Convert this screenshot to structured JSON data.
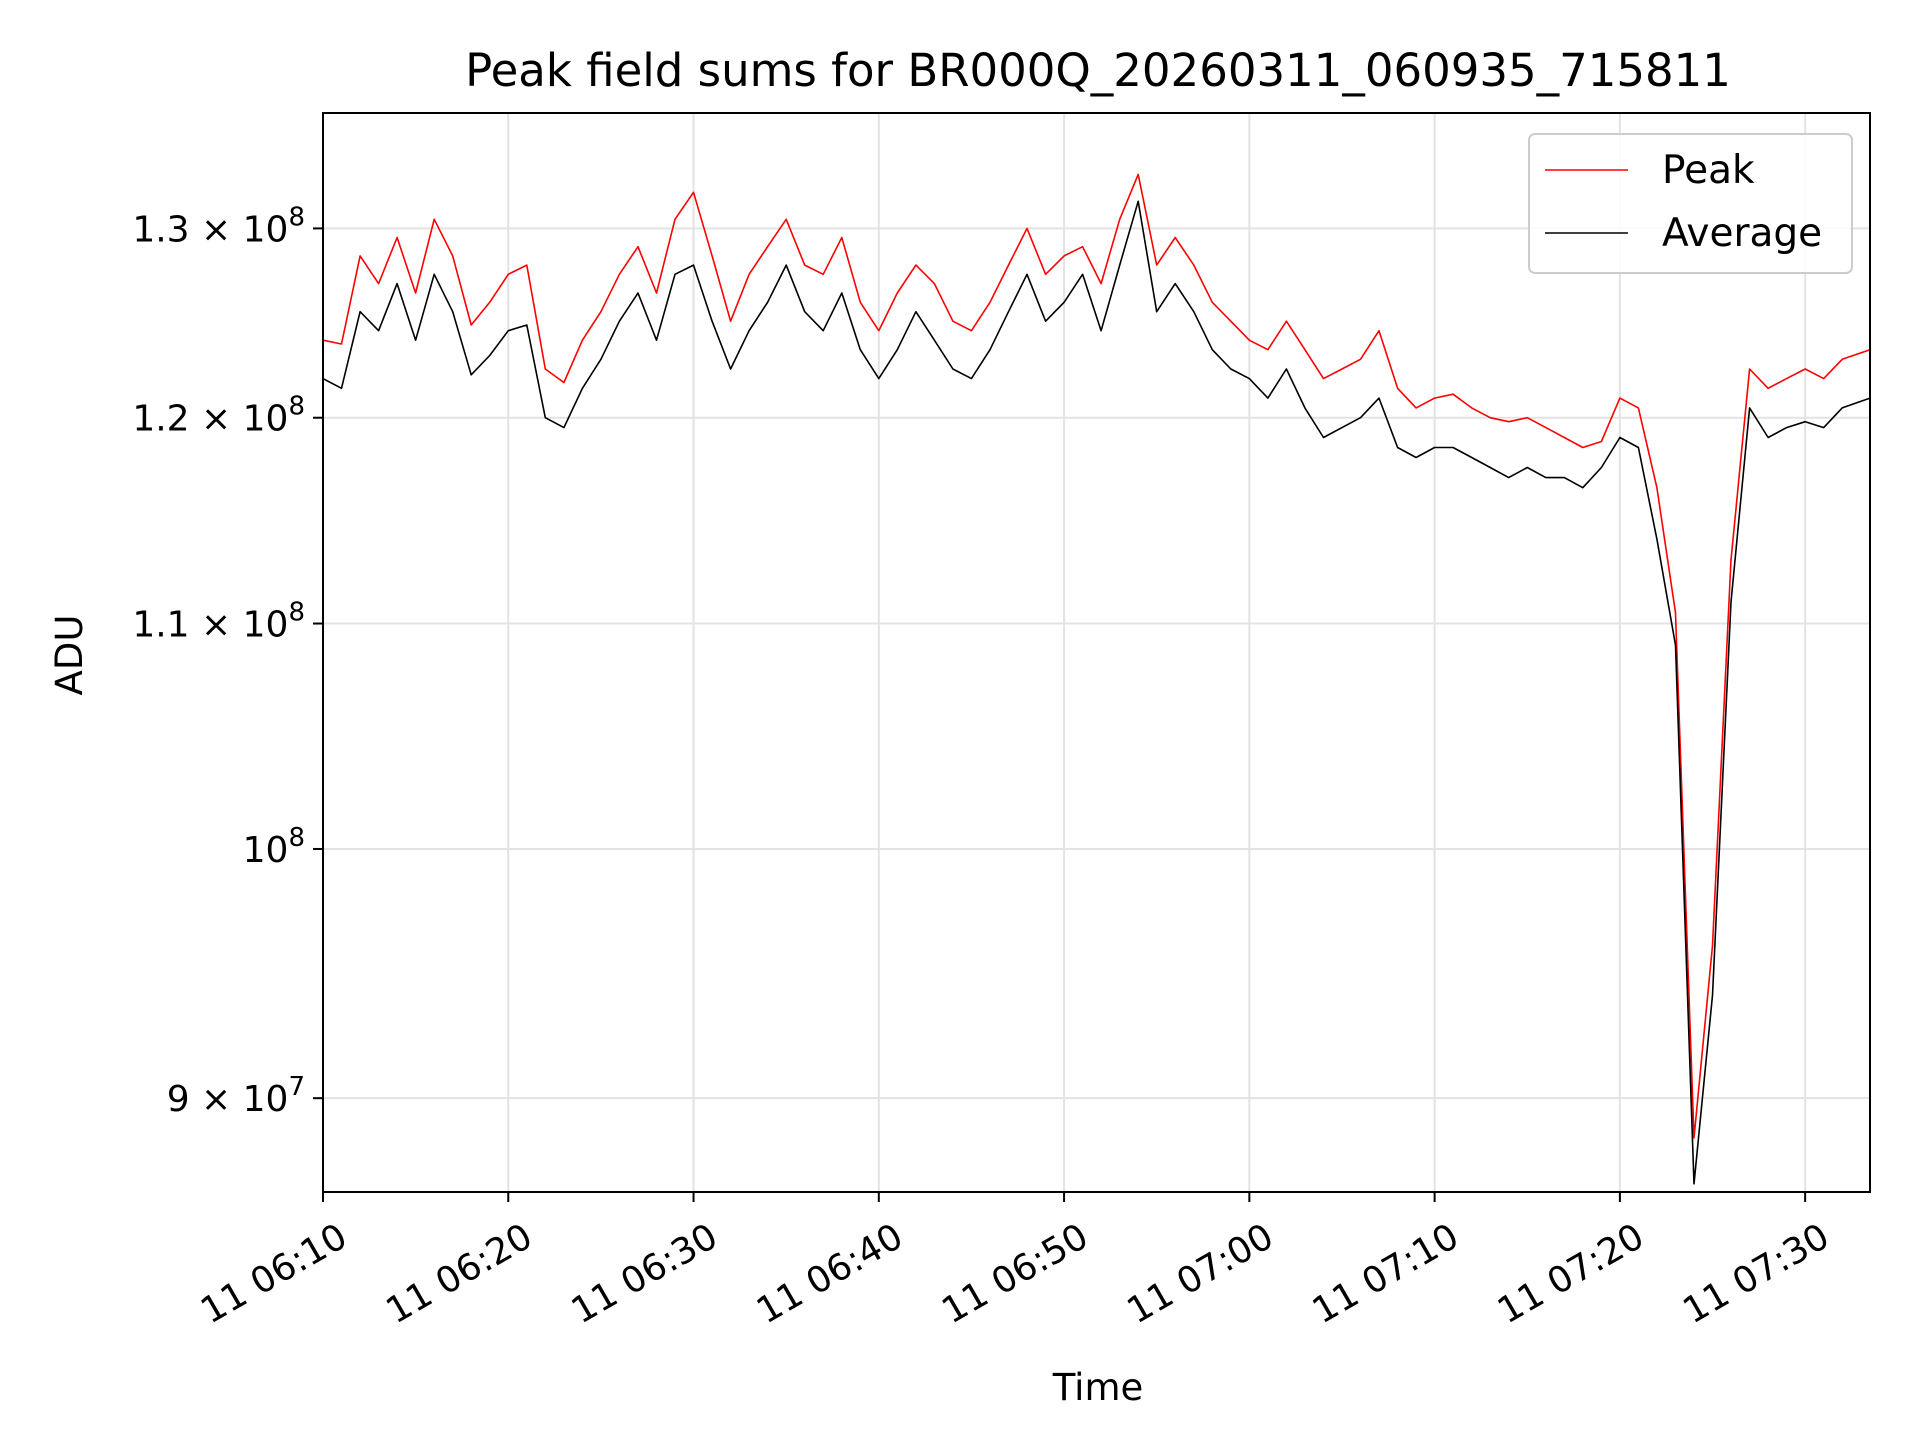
{
  "chart_data": {
    "type": "line",
    "title": "Peak field sums for BR000Q_20260311_060935_715811",
    "xlabel": "Time",
    "ylabel": "ADU",
    "yscale": "log",
    "grid": true,
    "legend_position": "top-right",
    "xlim": [
      0,
      83.5
    ],
    "ylim": [
      86500000,
      136500000
    ],
    "x_unit": "minutes since 11 06:10",
    "x_ticks": [
      0,
      10,
      20,
      30,
      40,
      50,
      60,
      70,
      80
    ],
    "x_tick_labels": [
      "11 06:10",
      "11 06:20",
      "11 06:30",
      "11 06:40",
      "11 06:50",
      "11 07:00",
      "11 07:10",
      "11 07:20",
      "11 07:30"
    ],
    "y_ticks": [
      {
        "value": 90000000,
        "mantissa": "9",
        "exponent": "7"
      },
      {
        "value": 100000000,
        "mantissa": "",
        "exponent": "8"
      },
      {
        "value": 110000000,
        "mantissa": "1.1",
        "exponent": "8"
      },
      {
        "value": 120000000,
        "mantissa": "1.2",
        "exponent": "8"
      },
      {
        "value": 130000000,
        "mantissa": "1.3",
        "exponent": "8"
      }
    ],
    "series": [
      {
        "name": "Peak",
        "color": "#ff0000",
        "x": [
          0,
          1,
          2,
          3,
          4,
          5,
          6,
          7,
          8,
          9,
          10,
          11,
          12,
          13,
          14,
          15,
          16,
          17,
          18,
          19,
          20,
          21,
          22,
          23,
          24,
          25,
          26,
          27,
          28,
          29,
          30,
          31,
          32,
          33,
          34,
          35,
          36,
          37,
          38,
          39,
          40,
          41,
          42,
          43,
          44,
          45,
          46,
          47,
          48,
          49,
          50,
          51,
          52,
          53,
          54,
          55,
          56,
          57,
          58,
          59,
          60,
          61,
          62,
          63,
          64,
          65,
          66,
          67,
          68,
          69,
          70,
          71,
          72,
          73,
          74,
          75,
          76,
          77,
          78,
          79,
          80,
          81,
          82,
          83.5
        ],
        "values": [
          124.0,
          123.8,
          128.5,
          127.0,
          129.5,
          126.5,
          130.5,
          128.5,
          124.8,
          126.0,
          127.5,
          128.0,
          122.5,
          121.8,
          124.0,
          125.5,
          127.5,
          129.0,
          126.5,
          130.5,
          132.0,
          128.5,
          125.0,
          127.5,
          129.0,
          130.5,
          128.0,
          127.5,
          129.5,
          126.0,
          124.5,
          126.5,
          128.0,
          127.0,
          125.0,
          124.5,
          126.0,
          128.0,
          130.0,
          127.5,
          128.5,
          129.0,
          127.0,
          130.5,
          133.0,
          128.0,
          129.5,
          128.0,
          126.0,
          125.0,
          124.0,
          123.5,
          125.0,
          123.5,
          122.0,
          122.5,
          123.0,
          124.5,
          121.5,
          120.5,
          121.0,
          121.2,
          120.5,
          120.0,
          119.8,
          120.0,
          119.5,
          119.0,
          118.5,
          118.8,
          121.0,
          120.5,
          116.5,
          110.5,
          88.5,
          96.0,
          113.0,
          122.5,
          121.5,
          122.0,
          122.5,
          122.0,
          123.0,
          123.5
        ]
      },
      {
        "name": "Average",
        "color": "#000000",
        "x": [
          0,
          1,
          2,
          3,
          4,
          5,
          6,
          7,
          8,
          9,
          10,
          11,
          12,
          13,
          14,
          15,
          16,
          17,
          18,
          19,
          20,
          21,
          22,
          23,
          24,
          25,
          26,
          27,
          28,
          29,
          30,
          31,
          32,
          33,
          34,
          35,
          36,
          37,
          38,
          39,
          40,
          41,
          42,
          43,
          44,
          45,
          46,
          47,
          48,
          49,
          50,
          51,
          52,
          53,
          54,
          55,
          56,
          57,
          58,
          59,
          60,
          61,
          62,
          63,
          64,
          65,
          66,
          67,
          68,
          69,
          70,
          71,
          72,
          73,
          74,
          75,
          76,
          77,
          78,
          79,
          80,
          81,
          82,
          83.5
        ],
        "values": [
          122.0,
          121.5,
          125.5,
          124.5,
          127.0,
          124.0,
          127.5,
          125.5,
          122.2,
          123.2,
          124.5,
          124.8,
          120.0,
          119.5,
          121.5,
          123.0,
          125.0,
          126.5,
          124.0,
          127.5,
          128.0,
          125.0,
          122.5,
          124.5,
          126.0,
          128.0,
          125.5,
          124.5,
          126.5,
          123.5,
          122.0,
          123.5,
          125.5,
          124.0,
          122.5,
          122.0,
          123.5,
          125.5,
          127.5,
          125.0,
          126.0,
          127.5,
          124.5,
          128.0,
          131.5,
          125.5,
          127.0,
          125.5,
          123.5,
          122.5,
          122.0,
          121.0,
          122.5,
          120.5,
          119.0,
          119.5,
          120.0,
          121.0,
          118.5,
          118.0,
          118.5,
          118.5,
          118.0,
          117.5,
          117.0,
          117.5,
          117.0,
          117.0,
          116.5,
          117.5,
          119.0,
          118.5,
          114.0,
          109.0,
          86.8,
          94.0,
          111.0,
          120.5,
          119.0,
          119.5,
          119.8,
          119.5,
          120.5,
          121.0
        ]
      }
    ]
  }
}
